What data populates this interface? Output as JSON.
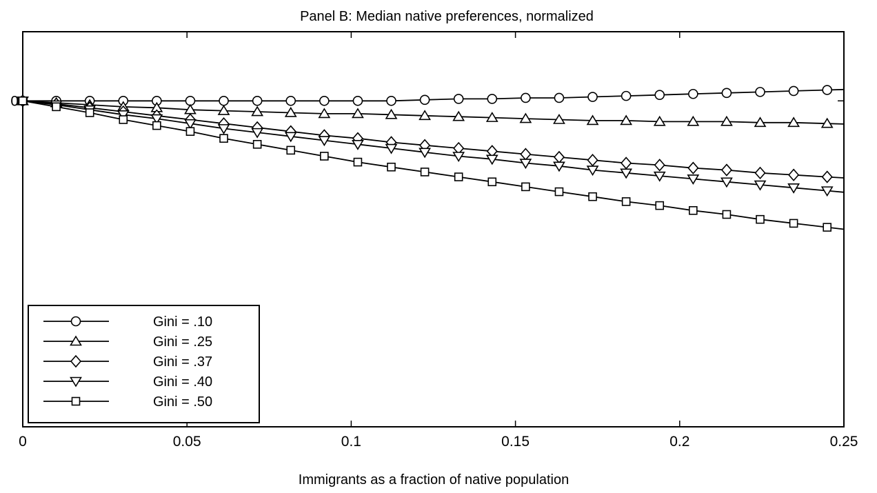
{
  "chart_data": {
    "type": "line",
    "title": "Panel B: Median native preferences, normalized",
    "xlabel": "Immigrants as a fraction of native population",
    "ylabel": "",
    "xlim": [
      0,
      0.25
    ],
    "ylim": [
      -0.33,
      0.07
    ],
    "x_ticks": [
      "0",
      "0.05",
      "0.1",
      "0.15",
      "0.2",
      "0.25"
    ],
    "x_tick_values": [
      0,
      0.05,
      0.1,
      0.15,
      0.2,
      0.25
    ],
    "y_ticks": [
      "0"
    ],
    "y_tick_values": [
      0
    ],
    "grid": false,
    "legend_position": "bottom-left",
    "x": [
      0,
      0.0102,
      0.0204,
      0.0306,
      0.0408,
      0.051,
      0.0612,
      0.0714,
      0.0816,
      0.0918,
      0.102,
      0.1122,
      0.1224,
      0.1327,
      0.1429,
      0.1531,
      0.1633,
      0.1735,
      0.1837,
      0.1939,
      0.2041,
      0.2143,
      0.2245,
      0.2347,
      0.2449
    ],
    "series": [
      {
        "name": "Gini = .10",
        "marker": "circle",
        "values": [
          0,
          0,
          0,
          0,
          0,
          0,
          0,
          0,
          0,
          0,
          0,
          0,
          0.001,
          0.002,
          0.002,
          0.003,
          0.003,
          0.004,
          0.005,
          0.006,
          0.007,
          0.008,
          0.009,
          0.01,
          0.011
        ]
      },
      {
        "name": "Gini = .25",
        "marker": "triangle-up",
        "values": [
          0,
          -0.002,
          -0.004,
          -0.006,
          -0.007,
          -0.009,
          -0.01,
          -0.011,
          -0.012,
          -0.013,
          -0.013,
          -0.014,
          -0.015,
          -0.016,
          -0.017,
          -0.018,
          -0.019,
          -0.02,
          -0.02,
          -0.021,
          -0.021,
          -0.021,
          -0.022,
          -0.022,
          -0.023
        ]
      },
      {
        "name": "Gini = .37",
        "marker": "diamond",
        "values": [
          0,
          -0.003,
          -0.007,
          -0.011,
          -0.015,
          -0.019,
          -0.023,
          -0.027,
          -0.031,
          -0.035,
          -0.038,
          -0.042,
          -0.045,
          -0.048,
          -0.051,
          -0.054,
          -0.057,
          -0.06,
          -0.063,
          -0.065,
          -0.068,
          -0.07,
          -0.073,
          -0.075,
          -0.077
        ]
      },
      {
        "name": "Gini = .40",
        "marker": "triangle-down",
        "values": [
          0,
          -0.004,
          -0.009,
          -0.014,
          -0.018,
          -0.023,
          -0.028,
          -0.032,
          -0.036,
          -0.04,
          -0.044,
          -0.048,
          -0.052,
          -0.056,
          -0.059,
          -0.063,
          -0.066,
          -0.07,
          -0.073,
          -0.076,
          -0.079,
          -0.082,
          -0.085,
          -0.088,
          -0.091
        ]
      },
      {
        "name": "Gini = .50",
        "marker": "square",
        "values": [
          0,
          -0.006,
          -0.012,
          -0.019,
          -0.025,
          -0.031,
          -0.038,
          -0.044,
          -0.05,
          -0.056,
          -0.062,
          -0.067,
          -0.072,
          -0.077,
          -0.082,
          -0.087,
          -0.092,
          -0.097,
          -0.102,
          -0.106,
          -0.111,
          -0.115,
          -0.12,
          -0.124,
          -0.128
        ]
      }
    ]
  }
}
